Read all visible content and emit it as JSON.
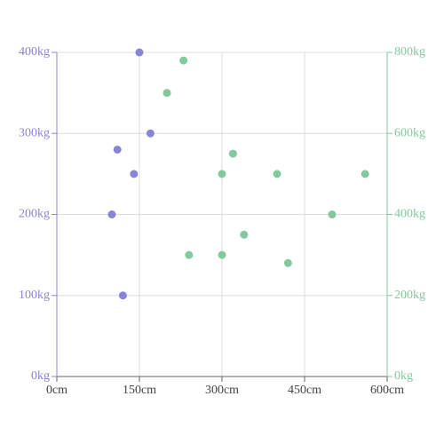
{
  "chart_data": {
    "type": "scatter",
    "xlim": [
      0,
      600
    ],
    "xticks": [
      {
        "value": 0,
        "label": "0cm"
      },
      {
        "value": 150,
        "label": "150cm"
      },
      {
        "value": 300,
        "label": "300cm"
      },
      {
        "value": 450,
        "label": "450cm"
      },
      {
        "value": 600,
        "label": "600cm"
      }
    ],
    "ylim": [
      0,
      400
    ],
    "yticks": [
      {
        "value": 0,
        "label": "0kg"
      },
      {
        "value": 100,
        "label": "100kg"
      },
      {
        "value": 200,
        "label": "200kg"
      },
      {
        "value": 300,
        "label": "300kg"
      },
      {
        "value": 400,
        "label": "400kg"
      }
    ],
    "y2lim": [
      0,
      800
    ],
    "y2ticks": [
      {
        "value": 0,
        "label": "0kg"
      },
      {
        "value": 200,
        "label": "200kg"
      },
      {
        "value": 400,
        "label": "400kg"
      },
      {
        "value": 600,
        "label": "600kg"
      },
      {
        "value": 800,
        "label": "800kg"
      }
    ],
    "grid": true,
    "y_axis_color": "#8884d8",
    "y2_axis_color": "#82ca9d",
    "series": [
      {
        "color": "#8884d8",
        "x": [
          150,
          170,
          110,
          140,
          100,
          120
        ],
        "values": [
          400,
          300,
          280,
          250,
          200,
          100
        ]
      },
      {
        "color": "#82ca9d",
        "axis": "y2",
        "x": [
          230,
          200,
          320,
          300,
          400,
          560,
          500,
          340,
          240,
          300,
          420
        ],
        "values": [
          780,
          700,
          550,
          500,
          500,
          500,
          400,
          350,
          300,
          300,
          280
        ]
      }
    ]
  }
}
